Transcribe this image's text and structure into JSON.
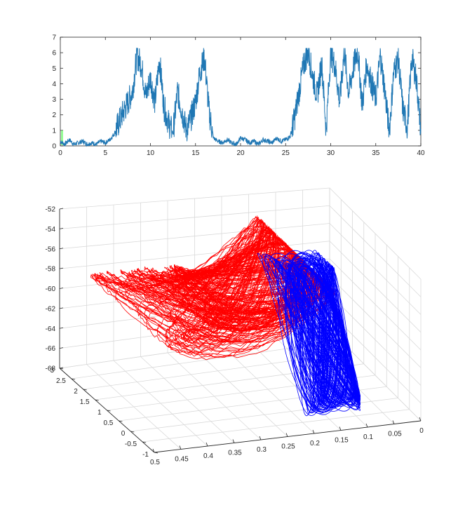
{
  "chart_data": [
    {
      "type": "line",
      "title": "",
      "xlabel": "",
      "ylabel": "",
      "xlim": [
        0,
        40
      ],
      "ylim": [
        0,
        7
      ],
      "xticks": [
        "0",
        "5",
        "10",
        "15",
        "20",
        "25",
        "30",
        "35",
        "40"
      ],
      "yticks": [
        "0",
        "1",
        "2",
        "3",
        "4",
        "5",
        "6",
        "7"
      ],
      "grid": false,
      "colors": {
        "trace": "#1f77b4",
        "marker": "#7cfc7c"
      },
      "series": [
        {
          "x": [
            0,
            0.5,
            1,
            1.5,
            2,
            2.5,
            3,
            3.5,
            4,
            4.5,
            5,
            5.5,
            6,
            6.5,
            7,
            7.5,
            8,
            8.5,
            9,
            9.5,
            10,
            10.5,
            11,
            11.5,
            12,
            12.5,
            13,
            13.5,
            14,
            14.5,
            15,
            15.5,
            16,
            16.5,
            17,
            17.5,
            18,
            18.5,
            19,
            19.5,
            20,
            20.5,
            21,
            21.5,
            22,
            22.5,
            23,
            23.5,
            24,
            24.5,
            25,
            25.5,
            26,
            26.5,
            27,
            27.5,
            28,
            28.5,
            29,
            29.5,
            30,
            30.5,
            31,
            31.5,
            32,
            32.5,
            33,
            33.5,
            34,
            34.5,
            35,
            35.5,
            36,
            36.5,
            37,
            37.5,
            38,
            38.5,
            39,
            39.5,
            40
          ],
          "values": [
            0.3,
            0.1,
            0.4,
            0.1,
            0.2,
            0.3,
            0.1,
            0.2,
            0.1,
            0.3,
            0.2,
            0.4,
            0.8,
            1.5,
            2.2,
            2.8,
            3.5,
            5.8,
            5.2,
            3.2,
            4.4,
            2.8,
            5.6,
            2.5,
            1.5,
            0.8,
            3.5,
            2.2,
            1.0,
            1.8,
            2.8,
            4.8,
            5.7,
            2.2,
            0.5,
            0.3,
            0.2,
            0.4,
            0.2,
            0.1,
            0.5,
            0.4,
            0.2,
            0.3,
            0.1,
            0.4,
            0.3,
            0.2,
            0.5,
            0.3,
            0.4,
            0.6,
            1.8,
            3.5,
            5.2,
            6.1,
            4.5,
            3.2,
            5.4,
            1.0,
            6.0,
            5.1,
            2.8,
            6.1,
            3.4,
            5.0,
            6.2,
            2.6,
            5.3,
            4.1,
            3.0,
            5.8,
            3.6,
            0.9,
            4.8,
            5.6,
            2.4,
            1.2,
            5.7,
            4.3,
            1.0
          ]
        }
      ]
    },
    {
      "type": "line3d",
      "title": "",
      "xlabel": "",
      "ylabel": "",
      "zlabel": "",
      "xlim": [
        0,
        0.5
      ],
      "ylim": [
        -1,
        3
      ],
      "zlim": [
        -68,
        -52
      ],
      "xticks": [
        "0",
        "0.05",
        "0.1",
        "0.15",
        "0.2",
        "0.25",
        "0.3",
        "0.35",
        "0.4",
        "0.45",
        "0.5"
      ],
      "yticks": [
        "-1",
        "-0.5",
        "0",
        "0.5",
        "1",
        "1.5",
        "2",
        "2.5",
        "3"
      ],
      "zticks": [
        "-52",
        "-54",
        "-56",
        "-58",
        "-60",
        "-62",
        "-64",
        "-66",
        "-68"
      ],
      "grid": true,
      "colors": {
        "red_series": "#ff0000",
        "blue_series": "#0000ff",
        "grid": "#d9d9d9"
      },
      "series": [
        {
          "color": "red",
          "x_range": [
            0.12,
            0.45
          ],
          "y_range": [
            -0.5,
            3
          ],
          "z_range": [
            -64,
            -54
          ]
        },
        {
          "color": "blue",
          "x_range": [
            0.08,
            0.2
          ],
          "y_range": [
            -1,
            1.5
          ],
          "z_range": [
            -67.5,
            -54.5
          ]
        }
      ]
    }
  ]
}
